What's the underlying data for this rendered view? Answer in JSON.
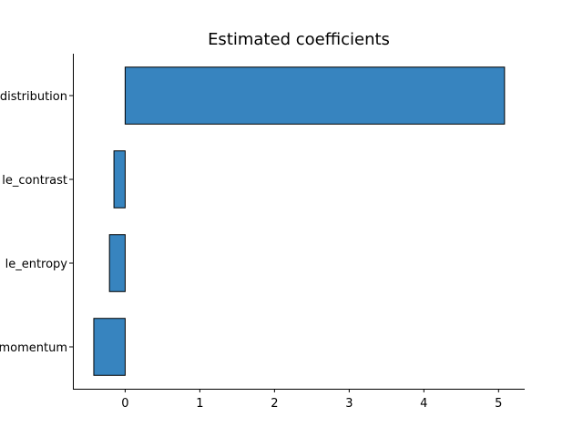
{
  "chart_data": {
    "type": "bar",
    "orientation": "horizontal",
    "title": "Estimated coefficients",
    "xlabel": "",
    "ylabel": "",
    "categories": [
      "distribution",
      "le_contrast",
      "le_entropy",
      "momentum"
    ],
    "values": [
      5.08,
      -0.15,
      -0.21,
      -0.42
    ],
    "xlim": [
      -0.7,
      5.35
    ],
    "xticks": [
      0,
      1,
      2,
      3,
      4,
      5
    ],
    "xtick_labels": [
      "0",
      "1",
      "2",
      "3",
      "4",
      "5"
    ],
    "grid": false,
    "legend": "none",
    "bar_color": "#3784bf",
    "bar_edge_color": "#000000"
  }
}
